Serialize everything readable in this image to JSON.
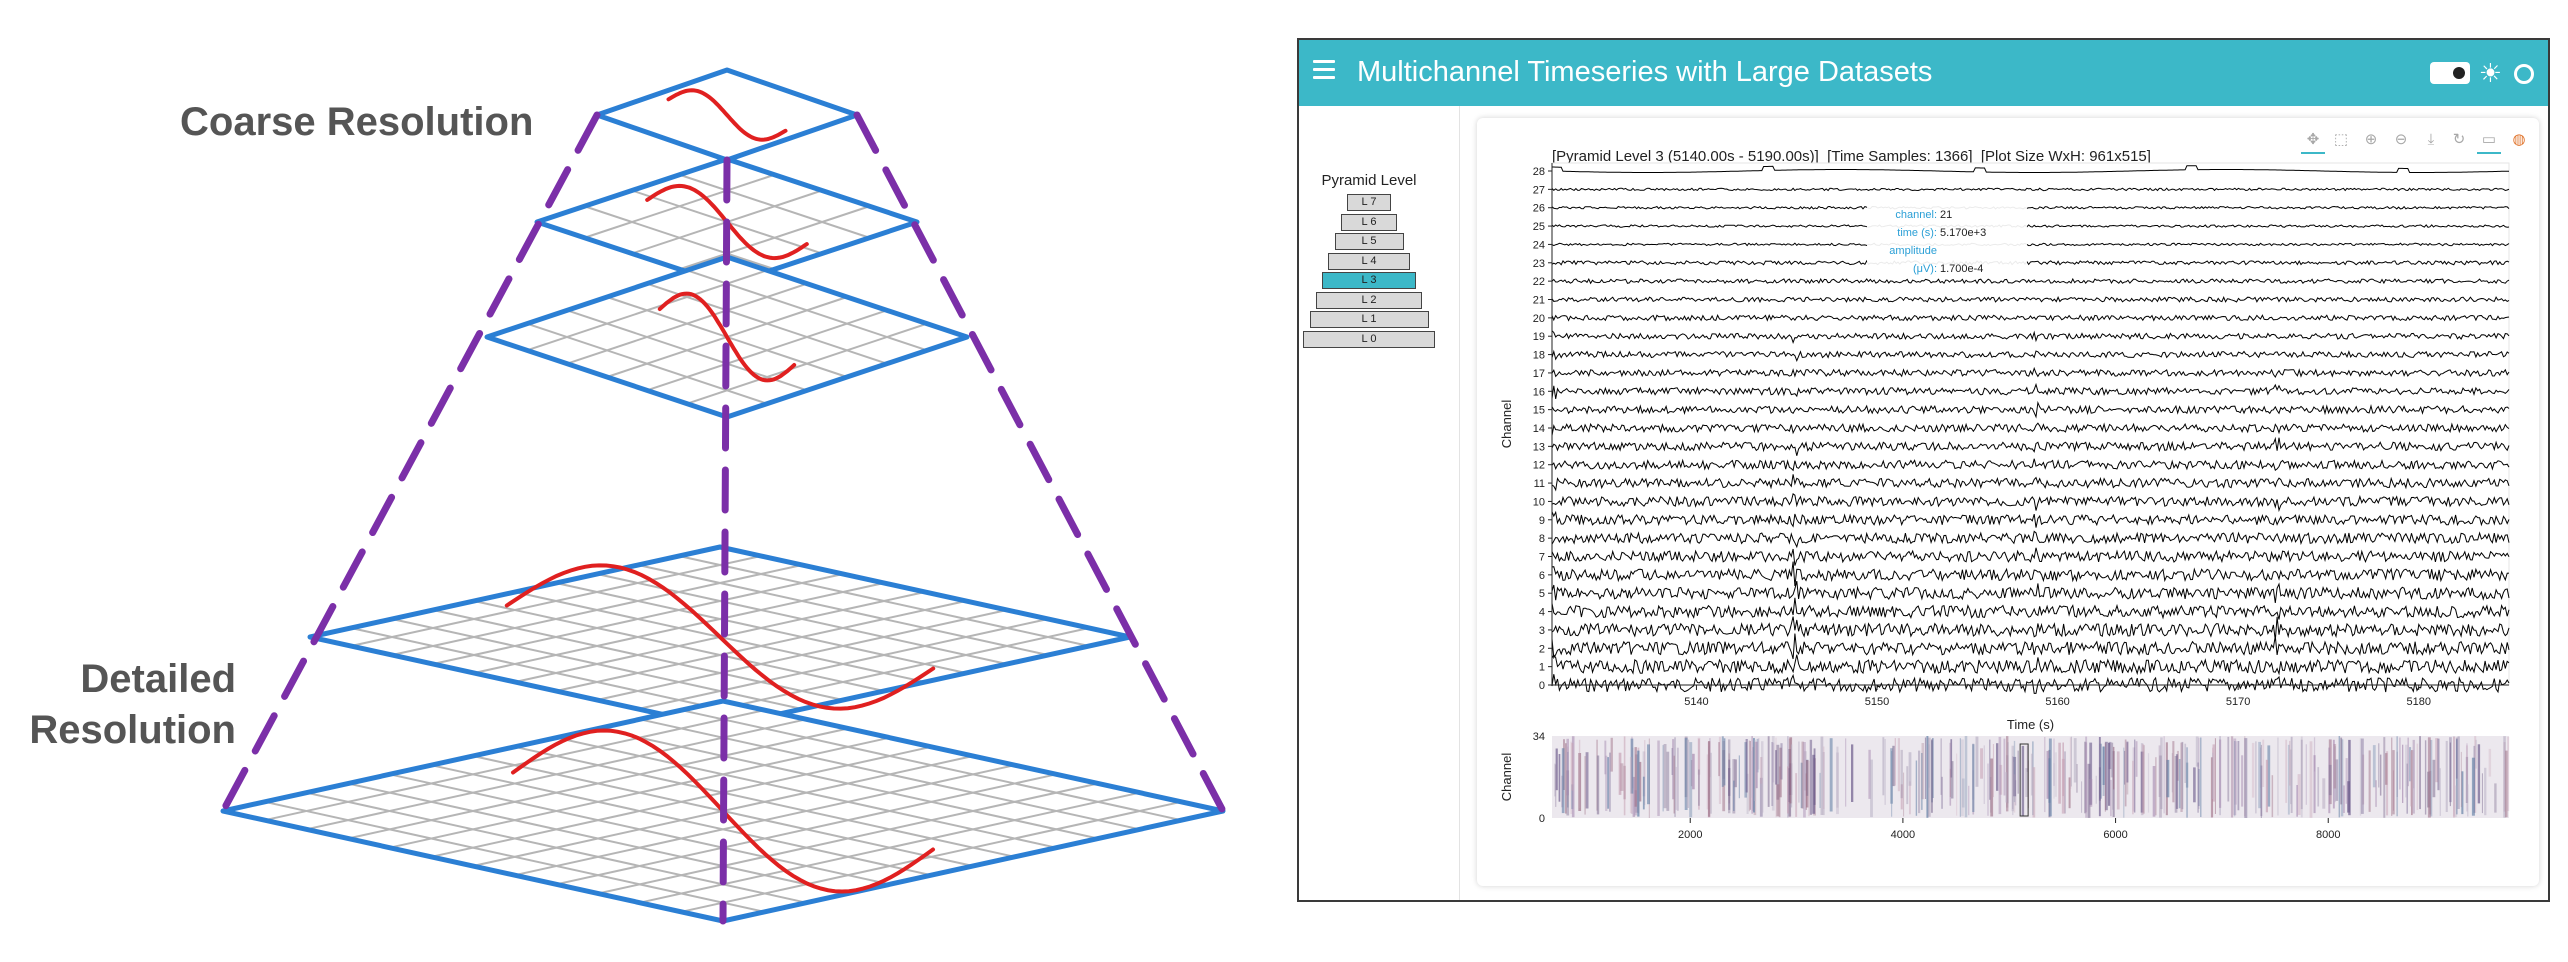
{
  "diagram": {
    "coarse_label": "Coarse Resolution",
    "detailed_label_line1": "Detailed",
    "detailed_label_line2": "Resolution"
  },
  "app": {
    "title": "Multichannel Timeseries with Large Datasets",
    "colors": {
      "accent": "#3cb8c8",
      "header_text": "#ffffff"
    }
  },
  "sidebar": {
    "pyramid_label": "Pyramid Level",
    "levels": [
      "L 7",
      "L 6",
      "L 5",
      "L 4",
      "L 3",
      "L 2",
      "L 1",
      "L 0"
    ],
    "active_level": "L 3"
  },
  "toolbar": {
    "icons": [
      "pan-icon",
      "box-zoom-icon",
      "zoom-in-icon",
      "zoom-out-icon",
      "save-icon",
      "reset-icon",
      "hover-icon",
      "logo-icon"
    ]
  },
  "plot": {
    "title_part1": "[Pyramid Level 3 (5140.00s - 5190.00s)]",
    "title_part2": "[Time Samples: 1366]",
    "title_part3": "[Plot Size WxH: 961x515]",
    "xlabel": "Time (s)",
    "ylabel": "Channel",
    "x_ticks": [
      "5140",
      "5150",
      "5160",
      "5170",
      "5180"
    ],
    "y_ticks": [
      "0",
      "1",
      "2",
      "3",
      "4",
      "5",
      "6",
      "7",
      "8",
      "9",
      "10",
      "11",
      "12",
      "13",
      "14",
      "15",
      "16",
      "17",
      "18",
      "19",
      "20",
      "21",
      "22",
      "23",
      "24",
      "25",
      "26",
      "27",
      "28"
    ],
    "tooltip": {
      "channel_key": "channel:",
      "channel_val": "21",
      "time_key": "time (s):",
      "time_val": "5.170e+3",
      "amp_key": "amplitude (μV):",
      "amp_val": "1.700e-4"
    }
  },
  "minimap": {
    "ylabel": "Channel",
    "y_ticks": [
      "0",
      "34"
    ],
    "x_ticks": [
      "2000",
      "4000",
      "6000",
      "8000"
    ]
  },
  "chart_data": {
    "type": "line",
    "xlabel": "Time (s)",
    "ylabel": "Channel",
    "xlim": [
      5132,
      5185
    ],
    "ylim": [
      0,
      28
    ],
    "channels": 29,
    "x_range_shown": [
      5140,
      5190
    ]
  }
}
